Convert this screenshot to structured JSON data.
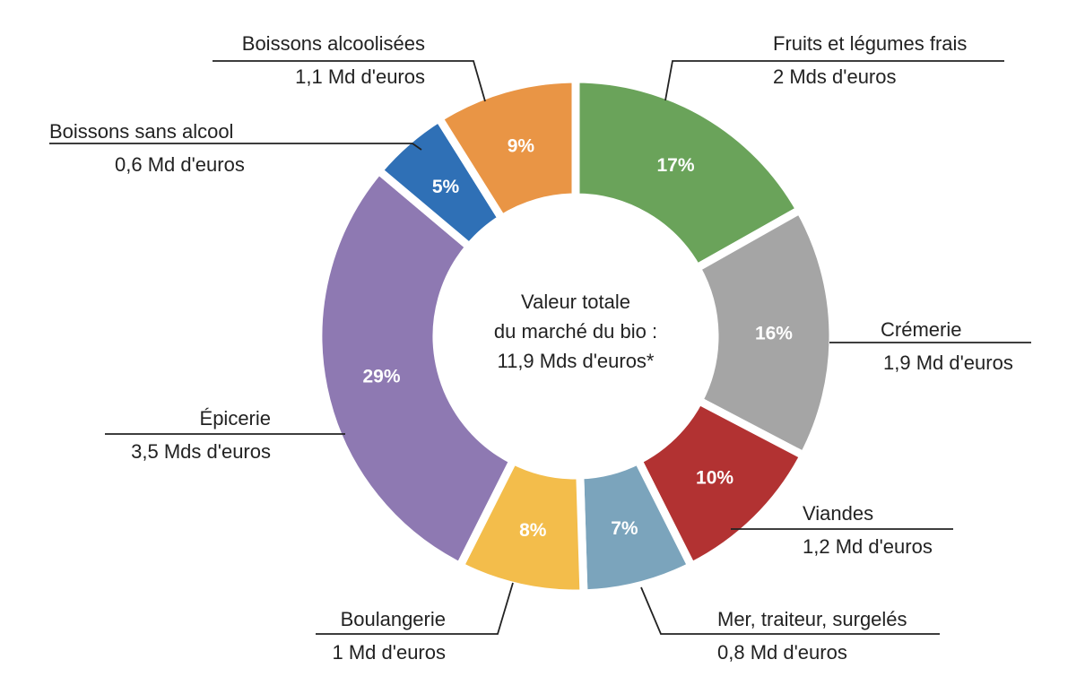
{
  "chart_data": {
    "type": "pie",
    "variant": "donut",
    "center_text": [
      "Valeur totale",
      "du marché du bio :",
      "11,9 Mds d'euros*"
    ],
    "slices": [
      {
        "name": "Fruits et légumes frais",
        "value_label": "2 Mds d'euros",
        "value": 2,
        "percent": 17,
        "percent_label": "17%",
        "color": "#6aa35a"
      },
      {
        "name": "Crémerie",
        "value_label": "1,9 Md d'euros",
        "value": 1.9,
        "percent": 16,
        "percent_label": "16%",
        "color": "#a5a5a5"
      },
      {
        "name": "Viandes",
        "value_label": "1,2 Md d'euros",
        "value": 1.2,
        "percent": 10,
        "percent_label": "10%",
        "color": "#b23232"
      },
      {
        "name": "Mer, traiteur, surgelés",
        "value_label": "0,8 Md d'euros",
        "value": 0.8,
        "percent": 7,
        "percent_label": "7%",
        "color": "#7ba4bc"
      },
      {
        "name": "Boulangerie",
        "value_label": "1 Md d'euros",
        "value": 1,
        "percent": 8,
        "percent_label": "8%",
        "color": "#f3bd4b"
      },
      {
        "name": "Épicerie",
        "value_label": "3,5 Mds d'euros",
        "value": 3.5,
        "percent": 29,
        "percent_label": "29%",
        "color": "#8e79b2"
      },
      {
        "name": "Boissons sans alcool",
        "value_label": "0,6 Md d'euros",
        "value": 0.6,
        "percent": 5,
        "percent_label": "5%",
        "color": "#2f70b6"
      },
      {
        "name": "Boissons alcoolisées",
        "value_label": "1,1 Md d'euros",
        "value": 1.1,
        "percent": 9,
        "percent_label": "9%",
        "color": "#e99545"
      }
    ]
  }
}
